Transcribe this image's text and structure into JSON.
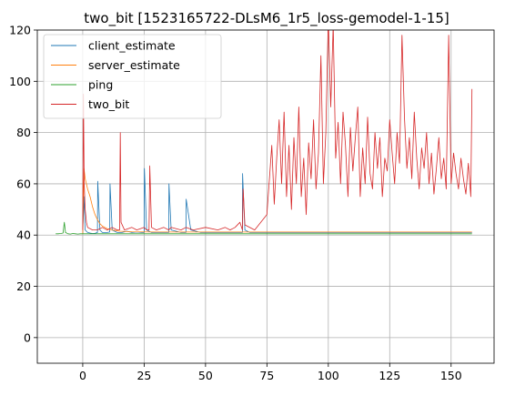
{
  "chart_data": {
    "type": "line",
    "title": "two_bit [1523165722-DLsM6_1r5_loss-gemodel-1-15]",
    "xlabel": "",
    "ylabel": "",
    "xlim": [
      -18.5,
      167.5
    ],
    "ylim": [
      -10,
      120
    ],
    "x_ticks": [
      0,
      25,
      50,
      75,
      100,
      125,
      150
    ],
    "y_ticks": [
      0,
      20,
      40,
      60,
      80,
      100,
      120
    ],
    "grid": true,
    "legend_position": "top-left",
    "series": [
      {
        "name": "client_estimate",
        "color": "#1f77b4",
        "x": [
          0,
          0.5,
          1,
          2,
          3,
          4,
          5,
          6,
          6.1,
          7,
          8,
          10,
          11,
          11.1,
          12,
          14,
          16,
          18,
          20,
          22,
          24,
          25,
          25.1,
          26,
          28,
          30,
          32,
          34,
          35,
          35.1,
          36,
          40,
          42,
          42.1,
          44,
          48,
          50,
          52,
          55,
          58,
          60,
          62,
          64,
          65,
          65.1,
          66,
          68,
          70,
          72,
          75,
          78,
          80,
          85,
          90,
          95,
          100,
          105,
          110,
          115,
          120,
          125,
          130,
          135,
          140,
          145,
          150,
          155,
          158.5
        ],
        "y": [
          40.5,
          55,
          42,
          41,
          40.8,
          40.6,
          40.7,
          41,
          61,
          42,
          41,
          41,
          41.2,
          60,
          42,
          41,
          41,
          41.5,
          41,
          41.2,
          41,
          41,
          66,
          42,
          41,
          41,
          41,
          41,
          41,
          60,
          42,
          41,
          41,
          54,
          42,
          41,
          41,
          41,
          41,
          41,
          41,
          41,
          41,
          41,
          64,
          42,
          41,
          41,
          41,
          41,
          41,
          41,
          41,
          41,
          41,
          41,
          41,
          41,
          41,
          41,
          41,
          41,
          41,
          41,
          41,
          41,
          41,
          41
        ]
      },
      {
        "name": "server_estimate",
        "color": "#ff7f0e",
        "x": [
          0,
          0.5,
          1,
          2,
          3,
          4,
          5,
          6,
          7,
          8,
          10,
          12,
          15,
          20,
          30,
          40,
          50,
          60,
          70,
          80,
          90,
          100,
          110,
          120,
          130,
          140,
          150,
          158.5
        ],
        "y": [
          40.5,
          66,
          62,
          58,
          55,
          51,
          48,
          46,
          44.5,
          43.5,
          42.5,
          42,
          41.5,
          41.3,
          41.2,
          41.2,
          41.2,
          41.2,
          41.2,
          41.2,
          41.2,
          41.2,
          41.2,
          41.2,
          41.2,
          41.2,
          41.2,
          41.2
        ]
      },
      {
        "name": "ping",
        "color": "#2ca02c",
        "x": [
          -11,
          -10,
          -9,
          -8,
          -7.5,
          -7,
          -6,
          -5,
          -4,
          -3,
          -2,
          -1,
          0,
          10,
          20,
          30,
          40,
          50,
          60,
          70,
          80,
          90,
          100,
          110,
          120,
          130,
          140,
          150,
          158.5
        ],
        "y": [
          40.5,
          40.5,
          40.6,
          40.8,
          45,
          41,
          40.5,
          40.4,
          40.6,
          40.5,
          40.4,
          40.5,
          40.5,
          40.5,
          40.5,
          40.5,
          40.5,
          40.5,
          40.5,
          40.5,
          40.5,
          40.5,
          40.5,
          40.5,
          40.5,
          40.5,
          40.5,
          40.5,
          40.5
        ]
      },
      {
        "name": "two_bit",
        "color": "#d62728",
        "x": [
          0,
          0.3,
          0.6,
          1,
          1.5,
          2,
          4,
          6,
          8,
          10,
          12,
          14,
          15,
          15.3,
          15.6,
          17,
          20,
          22,
          25,
          26,
          27,
          27.3,
          28,
          30,
          33,
          35,
          36,
          40,
          42,
          45,
          50,
          55,
          58,
          60,
          62,
          64,
          65,
          65.3,
          66,
          70,
          75,
          77,
          78,
          79,
          80,
          81,
          82,
          83,
          84,
          85,
          86,
          87,
          88,
          89,
          90,
          91,
          92,
          93,
          94,
          95,
          96,
          97,
          98,
          99,
          100,
          101,
          102,
          103,
          104,
          105,
          106,
          107,
          108,
          109,
          110,
          111,
          112,
          113,
          114,
          115,
          116,
          117,
          118,
          119,
          120,
          121,
          122,
          123,
          124,
          125,
          126,
          127,
          128,
          129,
          130,
          131,
          132,
          133,
          134,
          135,
          136,
          137,
          138,
          139,
          140,
          141,
          142,
          143,
          144,
          145,
          146,
          147,
          148,
          149,
          150,
          151,
          152,
          153,
          154,
          155,
          156,
          157,
          158,
          158.5
        ],
        "y": [
          42,
          95,
          60,
          50,
          45,
          43,
          42,
          42,
          43,
          42,
          43,
          42,
          42,
          80,
          45,
          42,
          43,
          42,
          43,
          42,
          42,
          67,
          43,
          42,
          43,
          42,
          43,
          42,
          43,
          42,
          43,
          42,
          43,
          42,
          43,
          45,
          42,
          58,
          44,
          42,
          48,
          75,
          52,
          70,
          85,
          60,
          88,
          55,
          75,
          50,
          78,
          60,
          90,
          55,
          70,
          48,
          76,
          62,
          85,
          58,
          72,
          110,
          60,
          80,
          125,
          90,
          122,
          70,
          84,
          60,
          88,
          75,
          55,
          82,
          65,
          78,
          90,
          55,
          74,
          60,
          86,
          64,
          58,
          80,
          66,
          78,
          55,
          70,
          65,
          85,
          72,
          60,
          80,
          68,
          118,
          86,
          66,
          78,
          62,
          88,
          70,
          58,
          74,
          66,
          80,
          60,
          72,
          56,
          66,
          78,
          62,
          70,
          58,
          118,
          60,
          72,
          64,
          58,
          70,
          62,
          56,
          68,
          55,
          97
        ]
      }
    ]
  }
}
